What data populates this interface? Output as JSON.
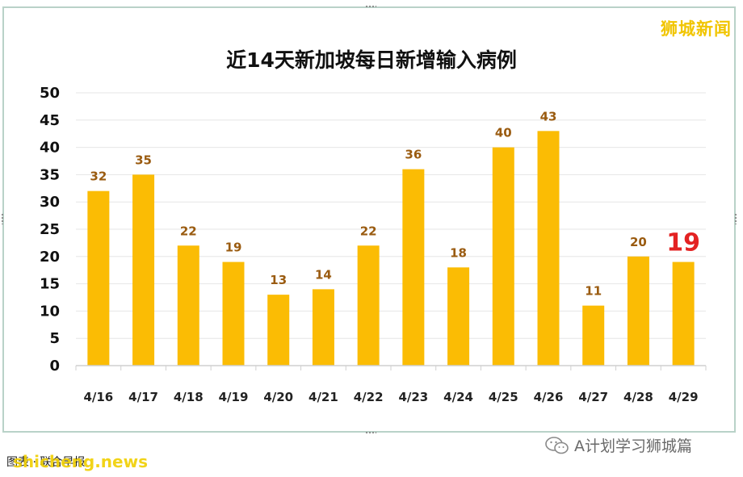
{
  "brand_text": "狮城新闻",
  "source_text": "图表 · 联合早报",
  "watermark_left": "shicheng.news",
  "watermark_right": "A计划学习狮城篇",
  "icons": {
    "wechat": "wechat-icon"
  },
  "colors": {
    "bar": "#FBBC04",
    "data_label": "#9A5B10",
    "highlight_label": "#E32222",
    "grid": "#E6E6E6",
    "brand": "#F1C500",
    "frame": "#B9D2C8"
  },
  "chart_data": {
    "type": "bar",
    "title": "近14天新加坡每日新增输入病例",
    "xlabel": "",
    "ylabel": "",
    "categories": [
      "4/16",
      "4/17",
      "4/18",
      "4/19",
      "4/20",
      "4/21",
      "4/22",
      "4/23",
      "4/24",
      "4/25",
      "4/26",
      "4/27",
      "4/28",
      "4/29"
    ],
    "values": [
      32,
      35,
      22,
      19,
      13,
      14,
      22,
      36,
      18,
      40,
      43,
      11,
      20,
      19
    ],
    "ylim": [
      0,
      50
    ],
    "yticks": [
      0,
      5,
      10,
      15,
      20,
      25,
      30,
      35,
      40,
      45,
      50
    ],
    "grid": true,
    "legend": "none",
    "highlight_index": 13
  }
}
